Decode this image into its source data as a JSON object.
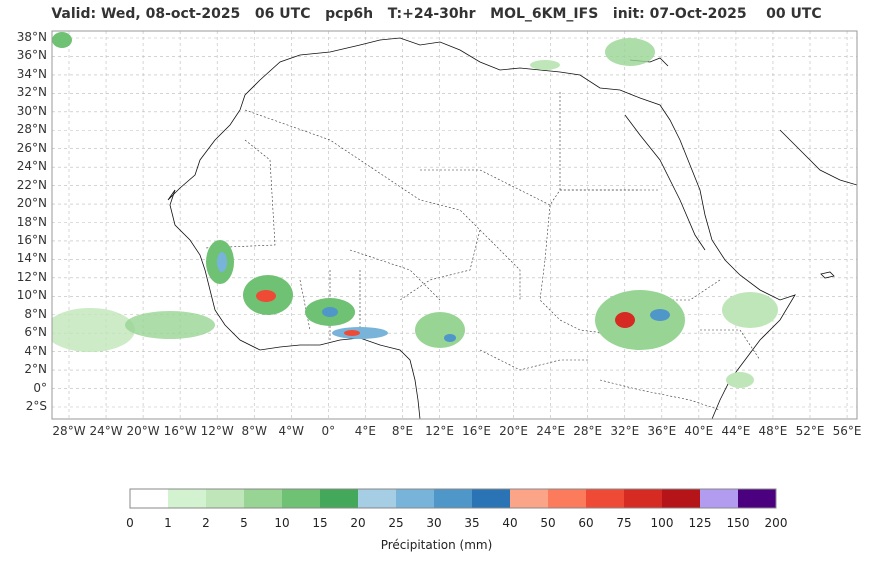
{
  "title": "Valid: Wed, 08-oct-2025   06 UTC   pcp6h   T:+24-30hr   MOL_6KM_IFS   init: 07-Oct-2025    00 UTC",
  "map": {
    "lat_ticks": [
      "38°N",
      "36°N",
      "34°N",
      "32°N",
      "30°N",
      "28°N",
      "26°N",
      "24°N",
      "22°N",
      "20°N",
      "18°N",
      "16°N",
      "14°N",
      "12°N",
      "10°N",
      "8°N",
      "6°N",
      "4°N",
      "2°N",
      "0°",
      "2°S"
    ],
    "lon_ticks": [
      "28°W",
      "24°W",
      "20°W",
      "16°W",
      "12°W",
      "8°W",
      "4°W",
      "0°",
      "4°E",
      "8°E",
      "12°E",
      "16°E",
      "20°E",
      "24°E",
      "28°E",
      "32°E",
      "36°E",
      "40°E",
      "44°E",
      "48°E",
      "52°E",
      "56°E"
    ],
    "gridlines": true
  },
  "colorbar": {
    "title": "Précipitation (mm)",
    "levels": [
      "0",
      "1",
      "2",
      "5",
      "10",
      "15",
      "20",
      "25",
      "30",
      "35",
      "40",
      "50",
      "60",
      "75",
      "100",
      "125",
      "150",
      "200"
    ],
    "colors": [
      "#ffffff",
      "#d3f2d0",
      "#bfe6b8",
      "#98d594",
      "#6fc173",
      "#43a85a",
      "#a5cde3",
      "#78b4da",
      "#4e97c8",
      "#2a74b6",
      "#fca487",
      "#fb7b5c",
      "#ef4a36",
      "#d52b23",
      "#b51419",
      "#b19cf0",
      "#4b0080"
    ]
  }
}
